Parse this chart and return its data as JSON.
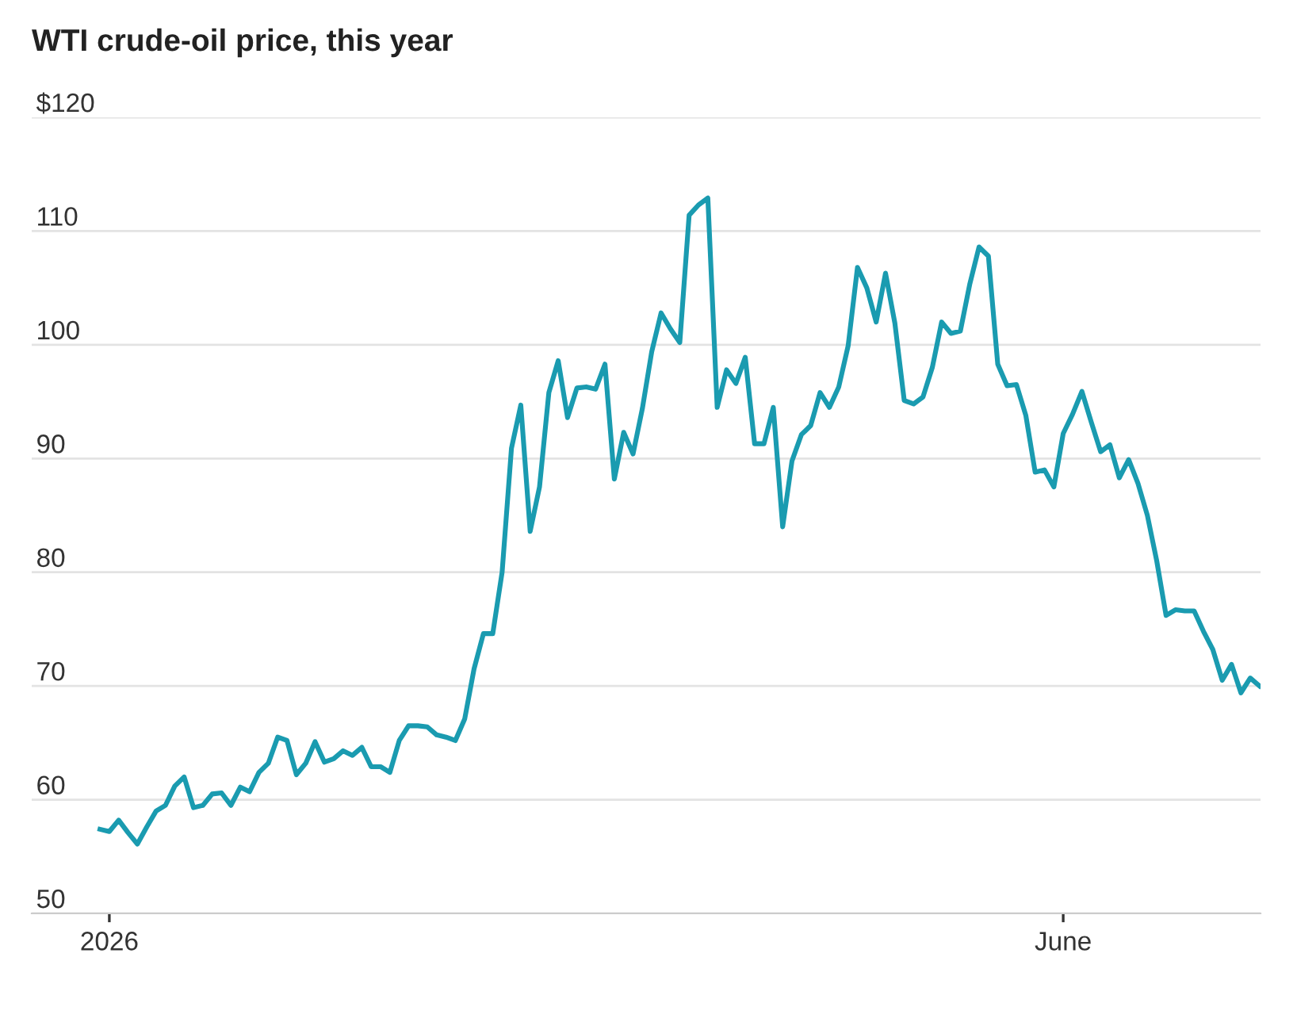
{
  "chart_data": {
    "type": "line",
    "title": "WTI crude-oil price, this year",
    "categories": [
      null,
      "2026",
      null,
      null,
      null,
      null,
      null,
      null,
      null,
      null,
      null,
      null,
      null,
      null,
      null,
      null,
      null,
      null,
      null,
      null,
      null,
      null,
      null,
      null,
      null,
      null,
      null,
      null,
      null,
      null,
      null,
      null,
      null,
      null,
      null,
      null,
      null,
      null,
      null,
      null,
      null,
      null,
      null,
      null,
      null,
      null,
      null,
      null,
      null,
      null,
      null,
      null,
      null,
      null,
      null,
      null,
      null,
      null,
      null,
      null,
      null,
      null,
      null,
      null,
      null,
      null,
      null,
      null,
      null,
      null,
      null,
      null,
      null,
      null,
      null,
      null,
      null,
      null,
      null,
      null,
      null,
      null,
      null,
      null,
      null,
      null,
      null,
      null,
      null,
      null,
      null,
      null,
      null,
      null,
      null,
      null,
      null,
      null,
      null,
      null,
      null,
      null,
      null,
      "June",
      null,
      null,
      null,
      null,
      null,
      null,
      null,
      null,
      null,
      null,
      null,
      null,
      null,
      null,
      null,
      null,
      null,
      null,
      null,
      null,
      null
    ],
    "series": [
      {
        "color": "#1a9bb0",
        "values": [
          57.4,
          57.2,
          58.2,
          57.1,
          56.1,
          57.6,
          59.0,
          59.5,
          61.2,
          62.0,
          59.3,
          59.5,
          60.5,
          60.6,
          59.5,
          61.1,
          60.7,
          62.4,
          63.2,
          65.5,
          65.2,
          62.2,
          63.2,
          65.1,
          63.3,
          63.6,
          64.3,
          63.9,
          64.6,
          62.9,
          62.9,
          62.4,
          65.2,
          66.5,
          66.5,
          66.4,
          65.7,
          65.5,
          65.2,
          67.1,
          71.5,
          74.6,
          74.6,
          80.0,
          90.9,
          94.7,
          83.6,
          87.5,
          95.8,
          98.6,
          93.6,
          96.2,
          96.3,
          96.1,
          98.3,
          88.2,
          92.3,
          90.4,
          94.4,
          99.4,
          102.8,
          101.4,
          100.2,
          111.4,
          112.3,
          112.9,
          94.5,
          97.8,
          96.6,
          98.9,
          91.3,
          91.3,
          94.5,
          84.0,
          89.8,
          92.1,
          92.9,
          95.8,
          94.5,
          96.3,
          99.9,
          106.8,
          105.0,
          102.0,
          106.3,
          101.9,
          95.1,
          94.8,
          95.4,
          98.0,
          102.0,
          101.0,
          101.2,
          105.3,
          108.6,
          107.8,
          98.3,
          96.4,
          96.5,
          93.8,
          88.8,
          89.0,
          87.5,
          92.2,
          93.9,
          95.9,
          93.2,
          90.6,
          91.2,
          88.3,
          89.9,
          87.8,
          85.0,
          81.0,
          76.2,
          76.7,
          76.6,
          76.6,
          74.8,
          73.2,
          70.5,
          71.9,
          69.4,
          70.7,
          70.0
        ]
      }
    ],
    "ylim": [
      50,
      120
    ],
    "yticks": [
      50,
      60,
      70,
      80,
      90,
      100,
      110,
      {
        "value": 120,
        "label": "$120"
      }
    ],
    "grid": "y",
    "legend": false,
    "marker": "none",
    "line_style": "solid"
  }
}
